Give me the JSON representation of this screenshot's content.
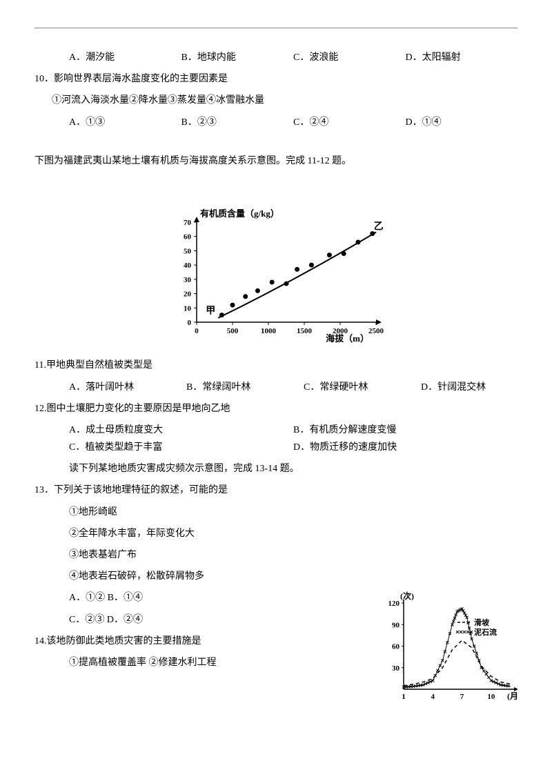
{
  "q9": {
    "options": {
      "A": "A．潮汐能",
      "B": "B．地球内能",
      "C": "C．波浪能",
      "D": "D．太阳辐射"
    }
  },
  "q10": {
    "stem": "10．影响世界表层海水盐度变化的主要因素是",
    "sub": "①河流入海淡水量②降水量③蒸发量④冰雪融水量",
    "options": {
      "A": "A．①③",
      "B": "B．②③",
      "C": "C．②④",
      "D": "D．①④"
    }
  },
  "passage11_12": "下图为福建武夷山某地土壤有机质与海拔高度关系示意图。完成 11-12 题。",
  "chart1": {
    "type": "scatter-line",
    "title": "有机质含量（g/kg）",
    "xlabel": "海拔（m）",
    "title_fontsize": 13,
    "label_fontsize": 13,
    "xlim": [
      0,
      2500
    ],
    "xtick_step": 500,
    "ylim": [
      0,
      70
    ],
    "ytick_step": 10,
    "xticks": [
      0,
      500,
      1000,
      1500,
      2000,
      2500
    ],
    "yticks": [
      0,
      10,
      20,
      30,
      40,
      50,
      60,
      70
    ],
    "label_jia": "甲",
    "label_yi": "乙",
    "points": [
      {
        "x": 350,
        "y": 5
      },
      {
        "x": 500,
        "y": 12
      },
      {
        "x": 680,
        "y": 18
      },
      {
        "x": 850,
        "y": 22
      },
      {
        "x": 1050,
        "y": 28
      },
      {
        "x": 1250,
        "y": 27
      },
      {
        "x": 1400,
        "y": 37
      },
      {
        "x": 1600,
        "y": 40
      },
      {
        "x": 1850,
        "y": 47
      },
      {
        "x": 2050,
        "y": 48
      },
      {
        "x": 2250,
        "y": 56
      },
      {
        "x": 2450,
        "y": 62
      }
    ],
    "line": [
      {
        "x": 300,
        "y": 3
      },
      {
        "x": 2500,
        "y": 63
      }
    ],
    "marker_color": "#000000",
    "line_color": "#000000",
    "axis_color": "#000000",
    "line_width": 2,
    "marker_radius": 3.5
  },
  "q11": {
    "stem": "11.甲地典型自然植被类型是",
    "options": {
      "A": "A．落叶阔叶林",
      "B": "B．常绿阔叶林",
      "C": "C．常绿硬叶林",
      "D": "D．针阔混交林"
    }
  },
  "q12": {
    "stem": "12.图中土壤肥力变化的主要原因是甲地向乙地",
    "options": {
      "A": "A．成土母质粒度变大",
      "B": "B．有机质分解速度变慢",
      "C": "C．植被类型趋于丰富",
      "D": "D．物质迁移的速度加快"
    }
  },
  "passage13_14": "读下列某地地质灾害成灾频次示意图，完成 13-14 题。",
  "q13": {
    "stem": "13．下列关于该地地理特征的叙述，可能的是",
    "items": [
      "①地形崎岖",
      "②全年降水丰富，年际变化大",
      "③地表基岩广布",
      "④地表岩石破碎，松散碎屑物多"
    ],
    "options": {
      "A": "A．①② B．①④",
      "C": "C．②③ D．②④"
    }
  },
  "q14": {
    "stem": "14.该地防御此类地质灾害的主要措施是",
    "items": [
      "①提高植被覆盖率  ②修建水利工程"
    ]
  },
  "chart2": {
    "type": "line",
    "ylabel": "(次)",
    "xlabel": "(月)",
    "label_fontsize": 12,
    "xlim": [
      1,
      12
    ],
    "ylim": [
      0,
      120
    ],
    "xticks": [
      1,
      4,
      7,
      10
    ],
    "yticks": [
      30,
      60,
      90,
      120
    ],
    "legend": [
      {
        "name": "滑坡",
        "style": "dashed",
        "color": "#000000"
      },
      {
        "name": "泥石流",
        "style": "cross",
        "color": "#000000"
      }
    ],
    "series": {
      "滑坡": [
        {
          "x": 1,
          "y": 5
        },
        {
          "x": 2,
          "y": 7
        },
        {
          "x": 3,
          "y": 10
        },
        {
          "x": 4,
          "y": 15
        },
        {
          "x": 5,
          "y": 30
        },
        {
          "x": 6,
          "y": 55
        },
        {
          "x": 7,
          "y": 68
        },
        {
          "x": 8,
          "y": 58
        },
        {
          "x": 9,
          "y": 32
        },
        {
          "x": 10,
          "y": 18
        },
        {
          "x": 11,
          "y": 10
        },
        {
          "x": 12,
          "y": 7
        }
      ],
      "泥石流": [
        {
          "x": 1,
          "y": 3
        },
        {
          "x": 2,
          "y": 4
        },
        {
          "x": 3,
          "y": 6
        },
        {
          "x": 4,
          "y": 12
        },
        {
          "x": 5,
          "y": 40
        },
        {
          "x": 6,
          "y": 90
        },
        {
          "x": 6.5,
          "y": 108
        },
        {
          "x": 7,
          "y": 112
        },
        {
          "x": 7.5,
          "y": 100
        },
        {
          "x": 8,
          "y": 70
        },
        {
          "x": 9,
          "y": 30
        },
        {
          "x": 10,
          "y": 12
        },
        {
          "x": 11,
          "y": 6
        },
        {
          "x": 12,
          "y": 4
        }
      ]
    },
    "axis_color": "#000000",
    "line_width": 1.5
  }
}
